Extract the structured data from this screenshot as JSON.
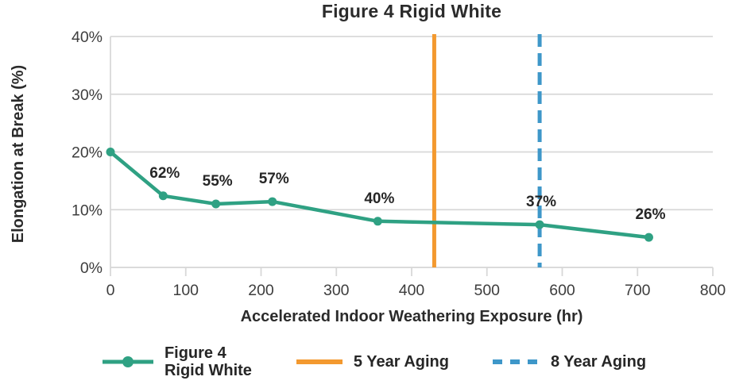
{
  "title": "Figure 4 Rigid White",
  "axes": {
    "y_title": "Elongation at Break (%)",
    "x_title": "Accelerated Indoor Weathering Exposure (hr)"
  },
  "legend": {
    "series_label_line1": "Figure 4",
    "series_label_line2": "Rigid White",
    "ref_5yr_label": "5 Year Aging",
    "ref_8yr_label": "8 Year Aging"
  },
  "colors": {
    "series": "#2FA183",
    "ref_5yr": "#F3992F",
    "ref_8yr": "#3E97C9",
    "grid": "#D8D8D8",
    "tick_text": "#3D3D3D",
    "label_text": "#262626"
  },
  "chart_data": {
    "type": "line",
    "title": "Figure 4 Rigid White",
    "xlabel": "Accelerated Indoor Weathering Exposure (hr)",
    "ylabel": "Elongation at Break (%)",
    "xlim": [
      0,
      800
    ],
    "ylim": [
      0,
      40
    ],
    "x_ticks": [
      0,
      100,
      200,
      300,
      400,
      500,
      600,
      700,
      800
    ],
    "y_ticks": [
      0,
      10,
      20,
      30,
      40
    ],
    "y_tick_suffix": "%",
    "grid": "horizontal",
    "legend_position": "bottom",
    "series": [
      {
        "name": "Figure 4 Rigid White",
        "color": "#2FA183",
        "marker": "circle",
        "style": "solid",
        "x": [
          0,
          70,
          140,
          215,
          355,
          570,
          715
        ],
        "y": [
          20,
          12.4,
          11,
          11.4,
          8,
          7.4,
          5.2
        ],
        "point_labels": [
          "",
          "62%",
          "55%",
          "57%",
          "40%",
          "37%",
          "26%"
        ]
      }
    ],
    "reference_lines": [
      {
        "label": "5 Year Aging",
        "x": 430,
        "color": "#F3992F",
        "style": "solid"
      },
      {
        "label": "8 Year Aging",
        "x": 570,
        "color": "#3E97C9",
        "style": "dashed"
      }
    ]
  }
}
